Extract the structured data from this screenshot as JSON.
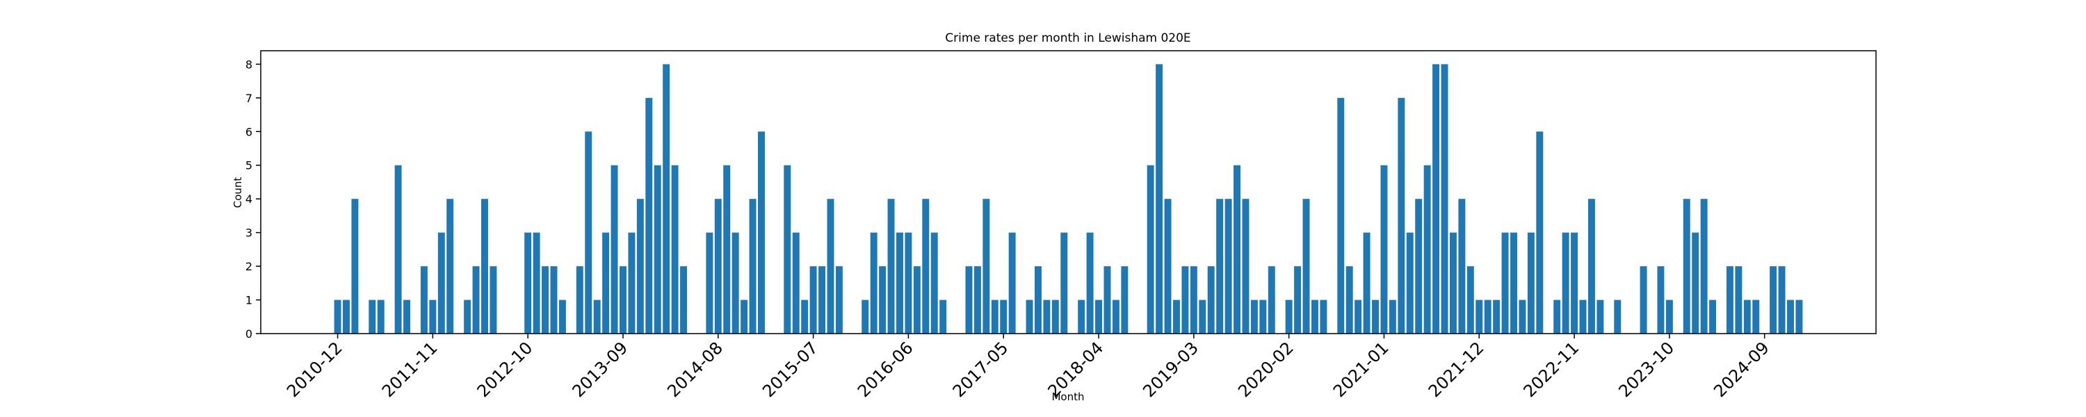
{
  "chart_data": {
    "type": "bar",
    "title": "Crime rates per month in Lewisham 020E",
    "x_label": "Month",
    "y_label": "Count",
    "color": "#1f77b4",
    "categories": [
      "2010-12",
      null,
      null,
      null,
      null,
      null,
      null,
      null,
      null,
      null,
      null,
      "2011-11",
      null,
      null,
      null,
      null,
      null,
      null,
      null,
      null,
      null,
      null,
      "2012-10",
      null,
      null,
      null,
      null,
      null,
      null,
      null,
      null,
      null,
      null,
      "2013-09",
      null,
      null,
      null,
      null,
      null,
      null,
      null,
      null,
      null,
      null,
      "2014-08",
      null,
      null,
      null,
      null,
      null,
      null,
      null,
      null,
      null,
      null,
      "2015-07",
      null,
      null,
      null,
      null,
      null,
      null,
      null,
      null,
      null,
      null,
      "2016-06",
      null,
      null,
      null,
      null,
      null,
      null,
      null,
      null,
      null,
      null,
      "2017-05",
      null,
      null,
      null,
      null,
      null,
      null,
      null,
      null,
      null,
      null,
      "2018-04",
      null,
      null,
      null,
      null,
      null,
      null,
      null,
      null,
      null,
      null,
      "2019-03",
      null,
      null,
      null,
      null,
      null,
      null,
      null,
      null,
      null,
      null,
      "2020-02",
      null,
      null,
      null,
      null,
      null,
      null,
      null,
      null,
      null,
      null,
      "2021-01",
      null,
      null,
      null,
      null,
      null,
      null,
      null,
      null,
      null,
      null,
      "2021-12",
      null,
      null,
      null,
      null,
      null,
      null,
      null,
      null,
      null,
      null,
      "2022-11",
      null,
      null,
      null,
      null,
      null,
      null,
      null,
      null,
      null,
      null,
      "2023-10",
      null,
      null,
      null,
      null,
      null,
      null,
      null,
      null,
      null,
      null,
      "2024-09",
      null,
      null,
      null,
      null
    ],
    "values": [
      1,
      1,
      4,
      0,
      1,
      1,
      0,
      5,
      1,
      0,
      2,
      1,
      3,
      4,
      0,
      1,
      2,
      4,
      2,
      0,
      0,
      0,
      3,
      3,
      2,
      2,
      1,
      0,
      2,
      6,
      1,
      3,
      5,
      2,
      3,
      4,
      7,
      5,
      8,
      5,
      2,
      0,
      0,
      3,
      4,
      5,
      3,
      1,
      4,
      6,
      0,
      0,
      5,
      3,
      1,
      2,
      2,
      4,
      2,
      0,
      0,
      1,
      3,
      2,
      4,
      3,
      3,
      2,
      4,
      3,
      1,
      0,
      0,
      2,
      2,
      4,
      1,
      1,
      3,
      0,
      1,
      2,
      1,
      1,
      3,
      0,
      1,
      3,
      1,
      2,
      1,
      2,
      0,
      0,
      5,
      8,
      4,
      1,
      2,
      2,
      1,
      2,
      4,
      4,
      5,
      4,
      1,
      1,
      2,
      0,
      1,
      2,
      4,
      1,
      1,
      0,
      7,
      2,
      1,
      3,
      1,
      5,
      1,
      7,
      3,
      4,
      5,
      8,
      8,
      3,
      4,
      2,
      1,
      1,
      1,
      3,
      3,
      1,
      3,
      6,
      0,
      1,
      3,
      3,
      1,
      4,
      1,
      0,
      1,
      0,
      0,
      2,
      0,
      2,
      1,
      0,
      4,
      3,
      4,
      1,
      0,
      2,
      2,
      1,
      1,
      0,
      2,
      2,
      1,
      1
    ],
    "ylim": [
      0,
      8.4
    ],
    "yticks": [
      0,
      1,
      2,
      3,
      4,
      5,
      6,
      7,
      8
    ],
    "grid": false
  }
}
